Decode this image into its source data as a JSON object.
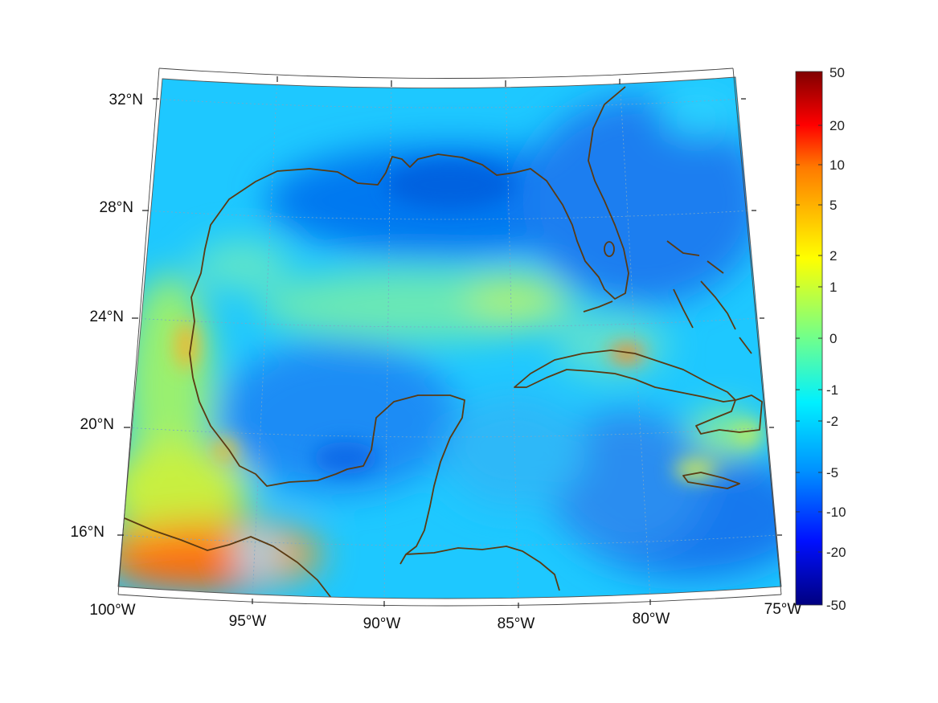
{
  "map": {
    "projection": "conic",
    "region": "Gulf of Mexico and Caribbean",
    "lon_range": [
      -100,
      -75
    ],
    "lat_range": [
      14,
      33
    ],
    "graticule": true,
    "coastline_color": "#5a3a12",
    "longitude_ticks": [
      {
        "value": -100,
        "label": "100°W"
      },
      {
        "value": -95,
        "label": "95°W"
      },
      {
        "value": -90,
        "label": "90°W"
      },
      {
        "value": -85,
        "label": "85°W"
      },
      {
        "value": -80,
        "label": "80°W"
      },
      {
        "value": -75,
        "label": "75°W"
      }
    ],
    "latitude_ticks": [
      {
        "value": 32,
        "label": "32°N"
      },
      {
        "value": 28,
        "label": "28°N"
      },
      {
        "value": 24,
        "label": "24°N"
      },
      {
        "value": 20,
        "label": "20°N"
      },
      {
        "value": 16,
        "label": "16°N"
      }
    ]
  },
  "colorbar": {
    "colormap": "jet",
    "scale": "symmetric-log",
    "range": [
      -50,
      50
    ],
    "tick_labels": [
      "50",
      "20",
      "10",
      "5",
      "2",
      "1",
      "0",
      "-1",
      "-2",
      "-5",
      "-10",
      "-20",
      "-50"
    ],
    "colors": [
      "#800000",
      "#ff0000",
      "#ff8000",
      "#ffff00",
      "#80ff80",
      "#00ffff",
      "#0080ff",
      "#0000ff",
      "#000080"
    ]
  }
}
